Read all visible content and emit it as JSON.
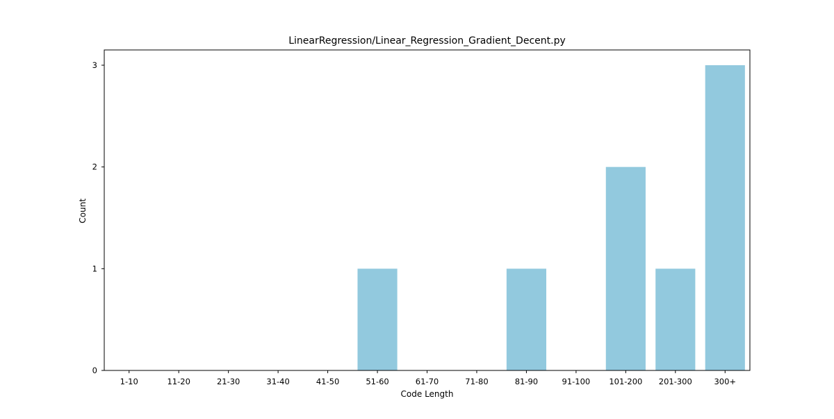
{
  "chart_data": {
    "type": "bar",
    "title": "LinearRegression/Linear_Regression_Gradient_Decent.py",
    "xlabel": "Code Length",
    "ylabel": "Count",
    "categories": [
      "1-10",
      "11-20",
      "21-30",
      "31-40",
      "41-50",
      "51-60",
      "61-70",
      "71-80",
      "81-90",
      "91-100",
      "101-200",
      "201-300",
      "300+"
    ],
    "values": [
      0,
      0,
      0,
      0,
      0,
      1,
      0,
      0,
      1,
      0,
      2,
      1,
      3
    ],
    "ylim": [
      0,
      3.15
    ],
    "yticks": [
      0,
      1,
      2,
      3
    ],
    "grid": false,
    "bar_color": "#92c9de"
  }
}
